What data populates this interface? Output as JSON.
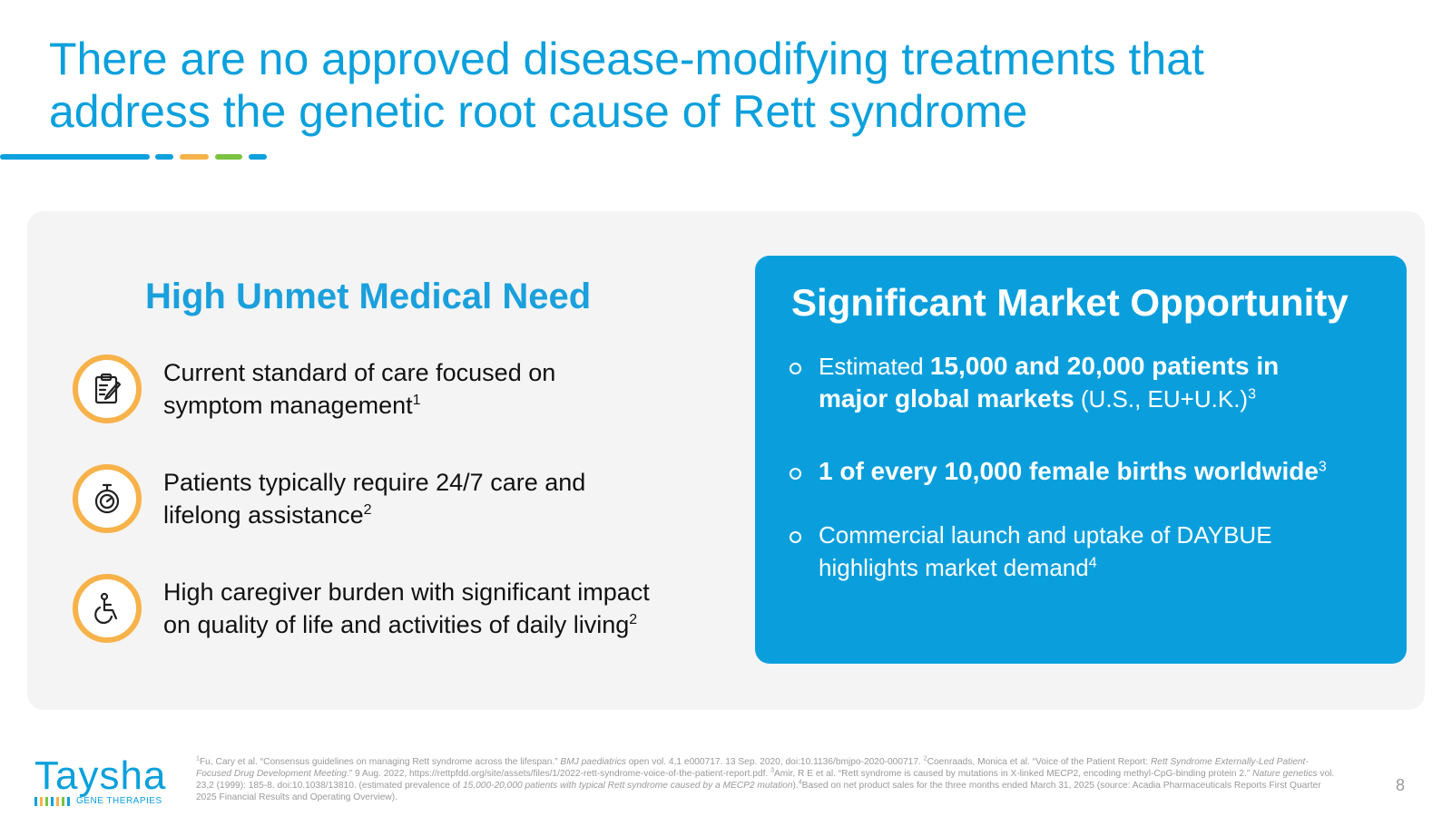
{
  "slide": {
    "title_line1": "There are no approved disease-modifying treatments that",
    "title_line2": "address the genetic root cause of Rett syndrome",
    "rule_colors": [
      "#0aa0dc",
      "#0aa0dc",
      "#f7b24a",
      "#7cc242",
      "#0aa0dc"
    ]
  },
  "left": {
    "heading": "High Unmet Medical Need",
    "items": [
      {
        "icon": "clipboard-icon",
        "line1": "Current standard of care focused on",
        "line2": "symptom management",
        "sup": "1"
      },
      {
        "icon": "stopwatch-icon",
        "line1": "Patients typically require 24/7 care and",
        "line2": "lifelong assistance",
        "sup": "2"
      },
      {
        "icon": "wheelchair-icon",
        "line1": "High caregiver burden with significant impact",
        "line2": "on quality of life and activities of daily living",
        "sup": "2"
      }
    ]
  },
  "right": {
    "heading": "Significant Market Opportunity",
    "bullet1": {
      "pre": "Estimated ",
      "bold1": "15,000 and 20,000 patients in",
      "bold2": "major global markets",
      "post": " (U.S., EU+U.K.)",
      "sup": "3"
    },
    "bullet2": {
      "bold": "1 of every 10,000 female births worldwide",
      "sup": "3"
    },
    "bullet3": {
      "line1": "Commercial launch and uptake of DAYBUE",
      "line2": "highlights market demand",
      "sup": "4"
    }
  },
  "footer": {
    "logo_text": "Taysha",
    "logo_tagline": "GENE THERAPIES",
    "logo_bar_colors": [
      "#0aa0dc",
      "#f7b24a",
      "#7cc242",
      "#0aa0dc",
      "#f7b24a",
      "#7cc242",
      "#0aa0dc"
    ],
    "footnote_1": "Fu, Cary et al. “Consensus guidelines on managing Rett syndrome across the lifespan.” ",
    "footnote_1_journal": "BMJ paediatrics",
    "footnote_1_rest": " open vol. 4,1 e000717. 13 Sep. 2020, doi:10.1136/bmjpo-2020-000717. ",
    "footnote_2": "Coenraads, Monica et al. “Voice of the Patient Report: ",
    "footnote_2_title": "Rett Syndrome Externally-Led Patient-Focused Drug Development Meeting",
    "footnote_2_rest": ".” 9 Aug. 2022, https://rettpfdd.org/site/assets/files/1/2022-rett-syndrome-voice-of-the-patient-report.pdf. ",
    "footnote_3": "Amir, R E et al. “Rett syndrome is caused by mutations in X-linked MECP2, encoding methyl-CpG-binding protein 2.” ",
    "footnote_3_journal": "Nature genetics",
    "footnote_3_rest": " vol. 23,2 (1999): 185-8. doi:10.1038/13810. (estimated prevalence of ",
    "footnote_3_italic": "15,000-20,000 patients with typical Rett syndrome caused by a MECP2 mutation",
    "footnote_3_end": ").",
    "footnote_4": "Based on net product sales for the three months ended March 31, 2025 (source: Acadia Pharmaceuticals Reports First Quarter 2025 Financial Results and Operating Overview).",
    "page_number": "8"
  }
}
